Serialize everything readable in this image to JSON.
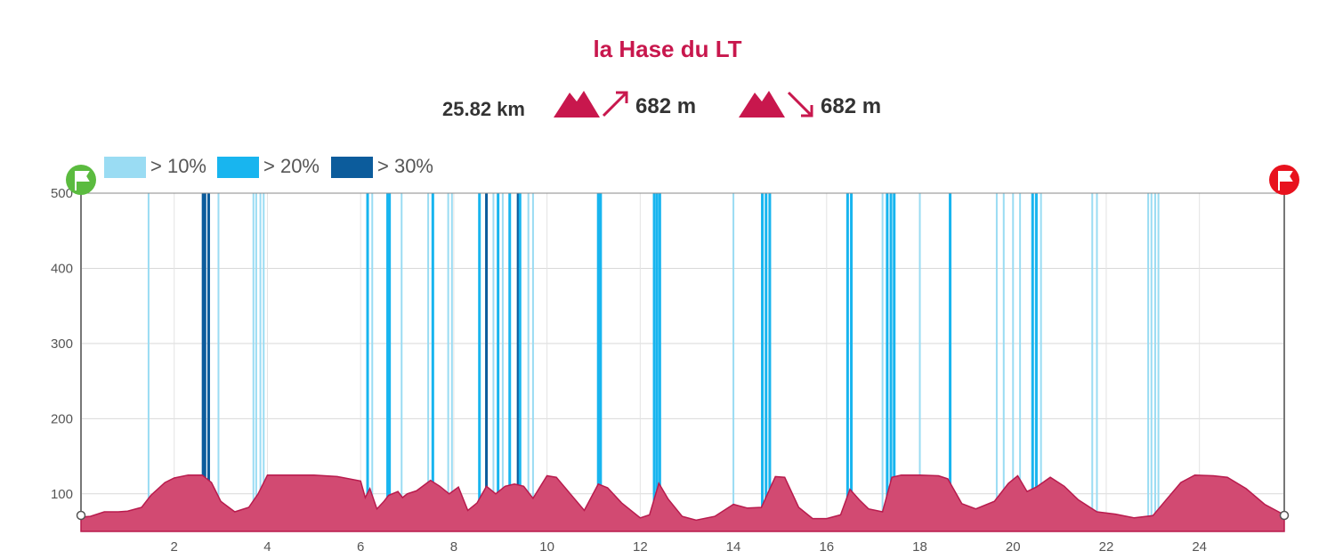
{
  "header": {
    "title": "la Hase du LT",
    "distance": "25.82 km",
    "ascent": "682 m",
    "descent": "682 m"
  },
  "colors": {
    "title": "#c8174d",
    "profile_fill": "#d24a72",
    "profile_line": "#b81b4d",
    "grade_10": "#9adcf3",
    "grade_20": "#18b5ef",
    "grade_30": "#0c5c9c",
    "start_flag": "#5bbb3f",
    "end_flag": "#e8121e"
  },
  "icons": [
    "mountain-icon",
    "arrow-up-icon",
    "arrow-down-icon",
    "start-flag-icon",
    "finish-flag-icon"
  ],
  "chart_data": {
    "type": "area",
    "xlim": [
      0,
      25.82
    ],
    "ylim": [
      50,
      500
    ],
    "x_ticks": [
      "2",
      "4",
      "6",
      "8",
      "10",
      "12",
      "14",
      "16",
      "18",
      "20",
      "22",
      "24"
    ],
    "y_ticks": [
      "100",
      "200",
      "300",
      "400",
      "500"
    ],
    "legend": [
      {
        "label": "> 10%",
        "color": "#9adcf3"
      },
      {
        "label": "> 20%",
        "color": "#18b5ef"
      },
      {
        "label": "> 30%",
        "color": "#0c5c9c"
      }
    ],
    "elevation": {
      "x": [
        0,
        0.2,
        0.5,
        0.8,
        1.0,
        1.3,
        1.5,
        1.8,
        2.0,
        2.3,
        2.6,
        2.8,
        3.0,
        3.3,
        3.6,
        3.8,
        4.0,
        4.5,
        5.0,
        5.5,
        6.0,
        6.1,
        6.2,
        6.35,
        6.5,
        6.6,
        6.8,
        6.9,
        7.0,
        7.2,
        7.5,
        7.7,
        7.9,
        8.1,
        8.3,
        8.5,
        8.7,
        8.9,
        9.1,
        9.3,
        9.5,
        9.7,
        10.0,
        10.2,
        10.5,
        10.8,
        11.1,
        11.3,
        11.6,
        12.0,
        12.2,
        12.4,
        12.6,
        12.9,
        13.2,
        13.6,
        14.0,
        14.3,
        14.6,
        14.9,
        15.1,
        15.4,
        15.7,
        16.0,
        16.3,
        16.5,
        16.7,
        16.9,
        17.2,
        17.4,
        17.6,
        18.0,
        18.4,
        18.6,
        18.9,
        19.2,
        19.6,
        19.9,
        20.1,
        20.3,
        20.5,
        20.8,
        21.1,
        21.4,
        21.8,
        22.2,
        22.6,
        23.0,
        23.3,
        23.6,
        23.9,
        24.3,
        24.6,
        25.0,
        25.4,
        25.82
      ],
      "y": [
        69,
        70,
        76,
        76,
        77,
        82,
        98,
        115,
        121,
        125,
        125,
        115,
        90,
        76,
        82,
        100,
        125,
        125,
        125,
        123,
        117,
        95,
        107,
        80,
        90,
        98,
        103,
        95,
        100,
        104,
        118,
        110,
        100,
        109,
        78,
        88,
        110,
        100,
        110,
        113,
        110,
        94,
        124,
        122,
        100,
        78,
        113,
        108,
        88,
        68,
        72,
        114,
        93,
        70,
        65,
        70,
        86,
        81,
        82,
        123,
        122,
        82,
        67,
        67,
        72,
        106,
        92,
        80,
        76,
        122,
        125,
        125,
        124,
        120,
        87,
        80,
        90,
        114,
        124,
        103,
        109,
        122,
        110,
        92,
        76,
        73,
        68,
        71,
        93,
        115,
        125,
        124,
        122,
        107,
        86,
        72
      ]
    },
    "grade_bars": [
      {
        "km": 1.45,
        "level": 1
      },
      {
        "km": 2.62,
        "level": 3
      },
      {
        "km": 2.66,
        "level": 3
      },
      {
        "km": 2.74,
        "level": 3
      },
      {
        "km": 2.95,
        "level": 1
      },
      {
        "km": 3.7,
        "level": 1
      },
      {
        "km": 3.76,
        "level": 1
      },
      {
        "km": 3.85,
        "level": 1
      },
      {
        "km": 3.92,
        "level": 1
      },
      {
        "km": 6.15,
        "level": 2
      },
      {
        "km": 6.25,
        "level": 1
      },
      {
        "km": 6.58,
        "level": 2
      },
      {
        "km": 6.62,
        "level": 2
      },
      {
        "km": 6.88,
        "level": 1
      },
      {
        "km": 7.45,
        "level": 1
      },
      {
        "km": 7.55,
        "level": 2
      },
      {
        "km": 7.88,
        "level": 1
      },
      {
        "km": 7.96,
        "level": 1
      },
      {
        "km": 8.55,
        "level": 2
      },
      {
        "km": 8.7,
        "level": 3
      },
      {
        "km": 8.85,
        "level": 1
      },
      {
        "km": 8.95,
        "level": 2
      },
      {
        "km": 9.05,
        "level": 1
      },
      {
        "km": 9.2,
        "level": 2
      },
      {
        "km": 9.38,
        "level": 3
      },
      {
        "km": 9.42,
        "level": 2
      },
      {
        "km": 9.6,
        "level": 1
      },
      {
        "km": 9.7,
        "level": 1
      },
      {
        "km": 11.1,
        "level": 2
      },
      {
        "km": 11.15,
        "level": 2
      },
      {
        "km": 12.3,
        "level": 2
      },
      {
        "km": 12.36,
        "level": 2
      },
      {
        "km": 12.42,
        "level": 2
      },
      {
        "km": 14.0,
        "level": 1
      },
      {
        "km": 14.62,
        "level": 2
      },
      {
        "km": 14.7,
        "level": 2
      },
      {
        "km": 14.78,
        "level": 2
      },
      {
        "km": 16.45,
        "level": 2
      },
      {
        "km": 16.53,
        "level": 2
      },
      {
        "km": 17.2,
        "level": 1
      },
      {
        "km": 17.3,
        "level": 2
      },
      {
        "km": 17.38,
        "level": 2
      },
      {
        "km": 17.45,
        "level": 2
      },
      {
        "km": 18.0,
        "level": 1
      },
      {
        "km": 18.65,
        "level": 2
      },
      {
        "km": 19.65,
        "level": 1
      },
      {
        "km": 19.8,
        "level": 1
      },
      {
        "km": 20.0,
        "level": 1
      },
      {
        "km": 20.15,
        "level": 1
      },
      {
        "km": 20.42,
        "level": 2
      },
      {
        "km": 20.5,
        "level": 2
      },
      {
        "km": 20.6,
        "level": 1
      },
      {
        "km": 21.7,
        "level": 1
      },
      {
        "km": 21.8,
        "level": 1
      },
      {
        "km": 22.9,
        "level": 1
      },
      {
        "km": 22.97,
        "level": 1
      },
      {
        "km": 23.05,
        "level": 1
      },
      {
        "km": 23.12,
        "level": 1
      }
    ]
  }
}
